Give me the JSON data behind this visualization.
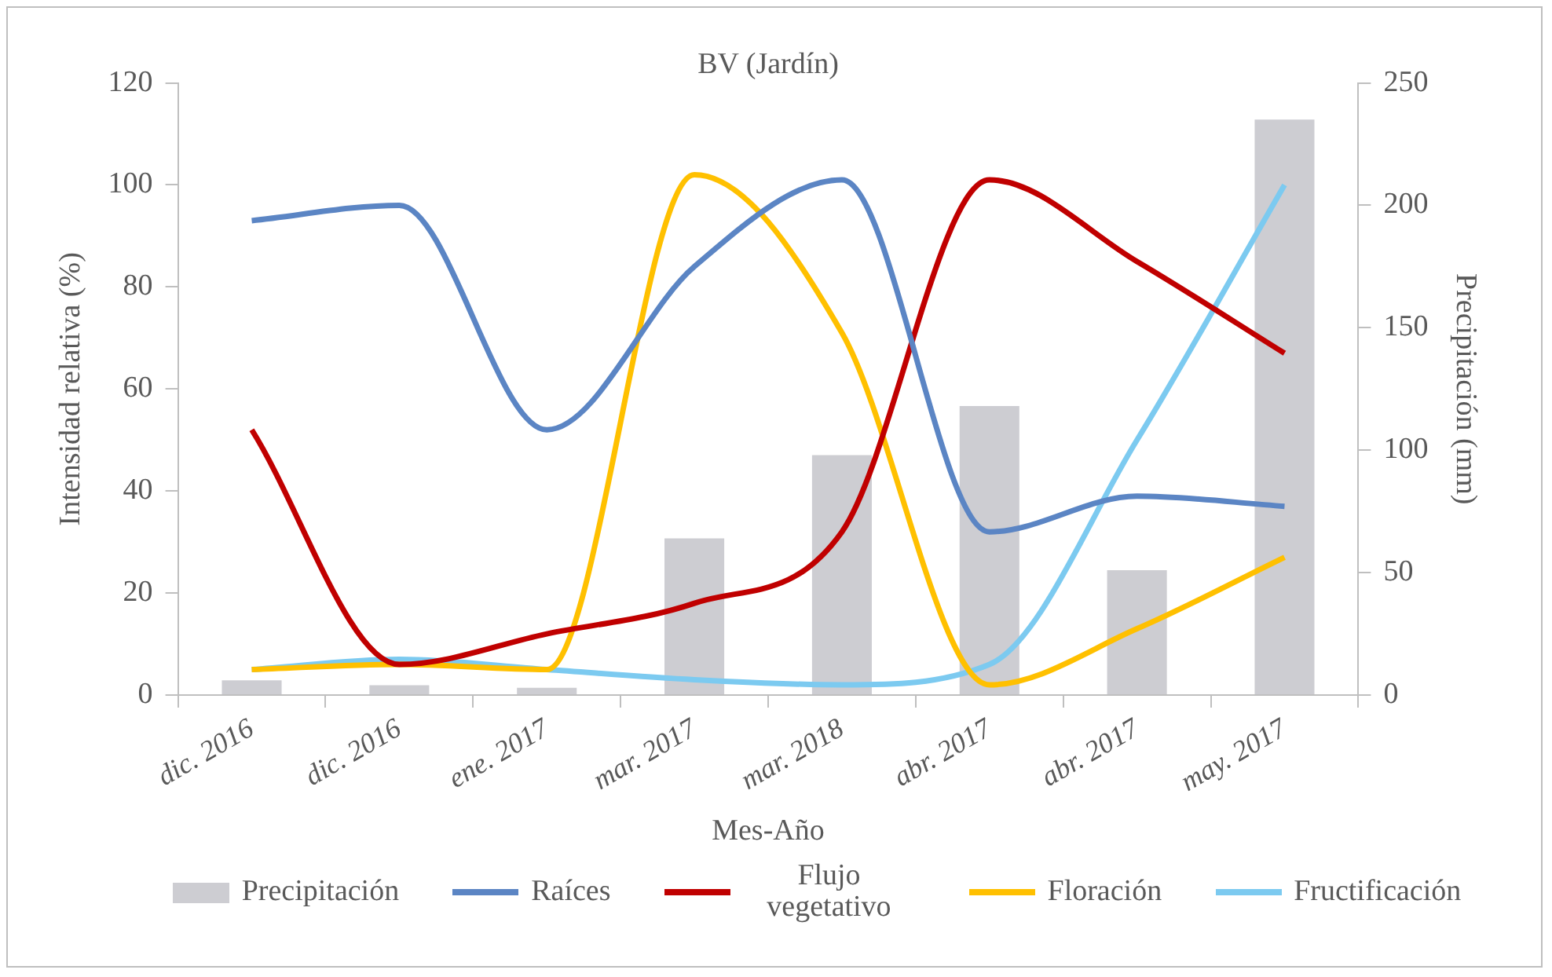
{
  "chart_data": {
    "type": "line",
    "title": "BV (Jardín)",
    "xlabel": "Mes-Año",
    "ylabel": "Intensidad relativa (%)",
    "y2label": "Precipitación (mm)",
    "categories": [
      "dic. 2016",
      "dic. 2016",
      "ene. 2017",
      "mar. 2017",
      "mar. 2018",
      "abr. 2017",
      "abr. 2017",
      "may. 2017"
    ],
    "series": [
      {
        "name": "Precipitación",
        "type": "bar",
        "axis": "y2",
        "color": "#cdcdd2",
        "values": [
          6,
          4,
          3,
          64,
          98,
          118,
          51,
          235
        ]
      },
      {
        "name": "Raíces",
        "color": "#5b85c4",
        "values": [
          93,
          96,
          52,
          84,
          101,
          32,
          39,
          37
        ]
      },
      {
        "name": "Flujo vegetativo",
        "color": "#c00000",
        "values": [
          52,
          6,
          12,
          18,
          32,
          101,
          85,
          67
        ]
      },
      {
        "name": "Floración",
        "color": "#ffc000",
        "values": [
          5,
          6,
          5,
          102,
          71,
          2,
          13,
          27
        ]
      },
      {
        "name": "Fructificación",
        "color": "#7ccaf0",
        "values": [
          5,
          7,
          5,
          3,
          2,
          6,
          50,
          100
        ]
      }
    ],
    "ylim": [
      0,
      120
    ],
    "yticks": [
      0,
      20,
      40,
      60,
      80,
      100,
      120
    ],
    "y2lim": [
      0,
      250
    ],
    "y2ticks": [
      0,
      50,
      100,
      150,
      200,
      250
    ],
    "grid": false,
    "legend": "bottom",
    "marker": "none"
  }
}
